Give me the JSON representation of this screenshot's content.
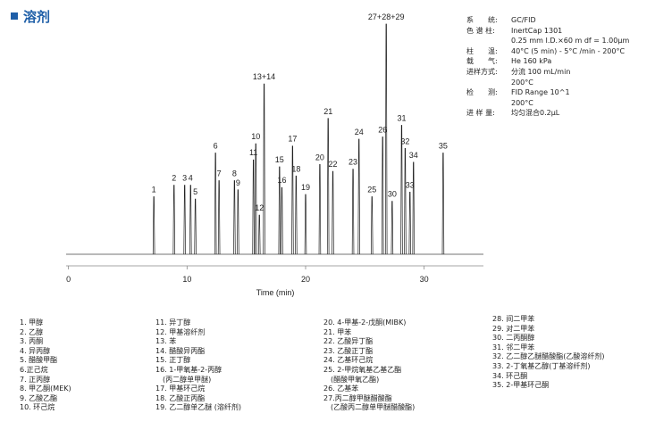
{
  "page": {
    "title": "溶剂"
  },
  "conditions": [
    {
      "label": "系　　统:",
      "value": "GC/FID"
    },
    {
      "label": "色 谱 柱:",
      "value": "InertCap 1301"
    },
    {
      "label": "",
      "value": "0.25 mm I.D.×60 m df = 1.00μm"
    },
    {
      "label": "柱　　温:",
      "value": "40°C (5 min) - 5°C /min - 200°C"
    },
    {
      "label": "载　　气:",
      "value": "He 160 kPa"
    },
    {
      "label": "进样方式:",
      "value": "分流 100 mL/min"
    },
    {
      "label": "",
      "value": "200°C"
    },
    {
      "label": "检　　测:",
      "value": "FID Range 10^1"
    },
    {
      "label": "",
      "value": "200°C"
    },
    {
      "label": "进 样 量:",
      "value": "均匀混合0.2μL"
    }
  ],
  "legend_columns": [
    [
      "1. 甲醇",
      "2. 乙醇",
      "3. 丙酮",
      "4. 异丙醇",
      "5. 醋酸甲酯",
      "6.正己烷",
      "7. 正丙醇",
      "8. 甲乙酮(MEK)",
      "9. 乙酸乙酯",
      "10. 环己烷"
    ],
    [
      "11. 异丁醇",
      "12. 甲基溶纤剂",
      "13. 苯",
      "14. 醋酸异丙酯",
      "15. 正丁醇",
      "16. 1-甲氧基-2-丙醇",
      "　(丙二醇单甲醚)",
      "17. 甲基环己烷",
      "18. 乙酸正丙酯",
      "19. 乙二醇单乙醚 (溶纤剂)"
    ],
    [
      "20. 4-甲基-2-戊酮(MIBK)",
      "21. 甲苯",
      "22. 乙酸异丁酯",
      "23. 乙酸正丁酯",
      "24. 乙基环己烷",
      "25. 2-甲烷氧基乙基乙酯",
      "　(醋酸甲氧乙酯)",
      "26. 乙基苯",
      "27.丙二醇甲醚醋酸酯",
      "　(乙酸丙二醇单甲醚醋酸酯)"
    ],
    [
      "28. 间二甲苯",
      "29. 对二甲苯",
      "30. 二丙酮醇",
      "31. 邻二甲苯",
      "32. 乙二醇乙醚醋酸酯(乙酸溶纤剂)",
      "33. 2-丁氧基乙醇(丁基溶纤剂)",
      "34. 环己酮",
      "35. 2-甲基环己酮"
    ]
  ],
  "chart_data": {
    "type": "line",
    "title": "",
    "xlabel": "Time (min)",
    "ylabel": "",
    "xlim": [
      -0.2,
      35
    ],
    "ylim": [
      0,
      100
    ],
    "x_ticks": [
      0,
      10,
      20,
      30
    ],
    "grid": false,
    "peaks": [
      {
        "label": "1",
        "rt": 7.2,
        "height": 25
      },
      {
        "label": "2",
        "rt": 8.9,
        "height": 30
      },
      {
        "label": "3",
        "rt": 9.8,
        "height": 30
      },
      {
        "label": "4",
        "rt": 10.3,
        "height": 30
      },
      {
        "label": "5",
        "rt": 10.7,
        "height": 24
      },
      {
        "label": "6",
        "rt": 12.4,
        "height": 44
      },
      {
        "label": "7",
        "rt": 12.7,
        "height": 32
      },
      {
        "label": "8",
        "rt": 14.0,
        "height": 32
      },
      {
        "label": "9",
        "rt": 14.3,
        "height": 28
      },
      {
        "label": "10",
        "rt": 15.8,
        "height": 48
      },
      {
        "label": "11",
        "rt": 15.6,
        "height": 41
      },
      {
        "label": "12",
        "rt": 16.1,
        "height": 17
      },
      {
        "label": "13+14",
        "rt": 16.5,
        "height": 74
      },
      {
        "label": "15",
        "rt": 17.8,
        "height": 38
      },
      {
        "label": "16",
        "rt": 18.0,
        "height": 29
      },
      {
        "label": "17",
        "rt": 18.9,
        "height": 47
      },
      {
        "label": "18",
        "rt": 19.2,
        "height": 34
      },
      {
        "label": "19",
        "rt": 20.0,
        "height": 26
      },
      {
        "label": "20",
        "rt": 21.2,
        "height": 39
      },
      {
        "label": "21",
        "rt": 21.9,
        "height": 59
      },
      {
        "label": "22",
        "rt": 22.3,
        "height": 36
      },
      {
        "label": "23",
        "rt": 24.0,
        "height": 37
      },
      {
        "label": "24",
        "rt": 24.5,
        "height": 50
      },
      {
        "label": "25",
        "rt": 25.6,
        "height": 25
      },
      {
        "label": "26",
        "rt": 26.5,
        "height": 51
      },
      {
        "label": "27+28+29",
        "rt": 26.8,
        "height": 100
      },
      {
        "label": "30",
        "rt": 27.3,
        "height": 23
      },
      {
        "label": "31",
        "rt": 28.1,
        "height": 56
      },
      {
        "label": "32",
        "rt": 28.4,
        "height": 46
      },
      {
        "label": "33",
        "rt": 28.8,
        "height": 27
      },
      {
        "label": "34",
        "rt": 29.1,
        "height": 40
      },
      {
        "label": "35",
        "rt": 31.6,
        "height": 44
      }
    ]
  }
}
